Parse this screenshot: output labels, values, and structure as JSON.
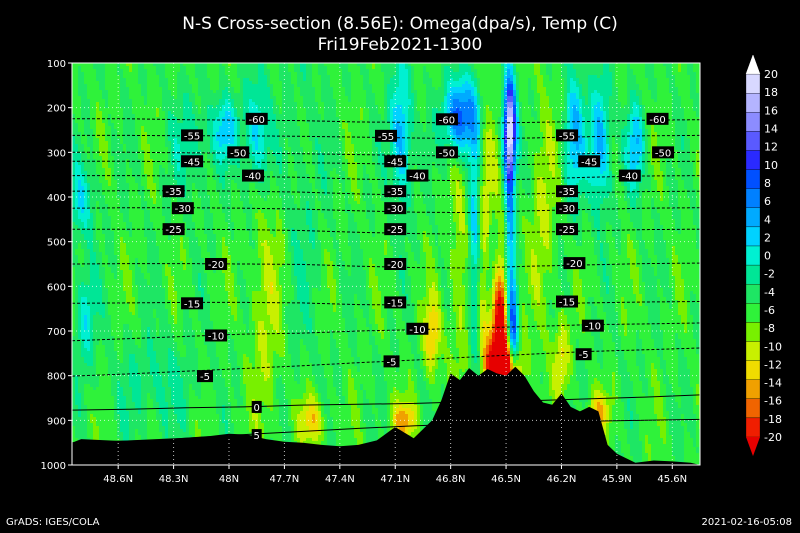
{
  "header": {
    "title": "N-S Cross-section (8.56E): Omega(dpa/s), Temp (C)",
    "subtitle": "Fri19Feb2021-1300"
  },
  "footer": {
    "left": "GrADS: IGES/COLA",
    "right": "2021-02-16-05:08"
  },
  "colors": {
    "background": "#000000",
    "terrain": "#000000",
    "neutral": "#2ff23a",
    "contour": "#000000"
  },
  "chart_data": {
    "type": "heatmap",
    "title": "N-S Cross-section (8.56E): Omega(dpa/s), Temp (C)",
    "subtitle": "Fri19Feb2021-1300",
    "x_axis": {
      "range": [
        48.85,
        45.45
      ],
      "ticks": [
        48.6,
        48.3,
        48.0,
        47.7,
        47.4,
        47.1,
        46.8,
        46.5,
        46.2,
        45.9,
        45.6
      ],
      "tick_labels": [
        "48.6N",
        "48.3N",
        "48N",
        "47.7N",
        "47.4N",
        "47.1N",
        "46.8N",
        "46.5N",
        "46.2N",
        "45.9N",
        "45.6N"
      ]
    },
    "y_axis": {
      "range": [
        100,
        1000
      ],
      "ticks": [
        100,
        200,
        300,
        400,
        500,
        600,
        700,
        800,
        900,
        1000
      ],
      "tick_labels": [
        "100",
        "200",
        "300",
        "400",
        "500",
        "600",
        "700",
        "800",
        "900",
        "1000"
      ]
    },
    "grid": true,
    "colorbar": {
      "placement": "right",
      "levels": [
        20,
        18,
        16,
        14,
        12,
        10,
        8,
        6,
        4,
        2,
        0,
        -2,
        -4,
        -6,
        -8,
        -10,
        -12,
        -14,
        -16,
        -18,
        -20
      ],
      "labels": [
        "20",
        "18",
        "16",
        "14",
        "12",
        "10",
        "8",
        "6",
        "4",
        "2",
        "0",
        "-2",
        "-4",
        "-6",
        "-8",
        "-10",
        "-12",
        "-14",
        "-16",
        "-18",
        "-20"
      ],
      "colors": [
        "#ffffff",
        "#d8d8ff",
        "#b4b4ff",
        "#8c8cff",
        "#5a5aff",
        "#2a2aff",
        "#0050ff",
        "#0080ff",
        "#00aaff",
        "#00d2ff",
        "#00f0d2",
        "#00e696",
        "#1ee664",
        "#2ff23a",
        "#78f000",
        "#c8f000",
        "#f0dc00",
        "#f0a000",
        "#f06400",
        "#f01e00",
        "#e60000"
      ]
    },
    "temperature_contours": [
      {
        "value": -60,
        "label": "-60",
        "p": [
          225,
          225,
          227,
          228,
          229,
          232,
          233,
          235,
          233,
          231,
          228,
          227
        ],
        "label_positions": [
          [
            47.85,
            225
          ],
          [
            46.82,
            226
          ],
          [
            45.68,
            225
          ]
        ]
      },
      {
        "value": -55,
        "label": "-55",
        "p": [
          262,
          262,
          263,
          263,
          264,
          266,
          268,
          270,
          268,
          265,
          263,
          262
        ],
        "label_positions": [
          [
            48.2,
            262
          ],
          [
            47.15,
            263
          ],
          [
            46.17,
            262
          ]
        ]
      },
      {
        "value": -50,
        "label": "-50",
        "p": [
          300,
          300,
          301,
          302,
          303,
          305,
          307,
          309,
          307,
          303,
          301,
          300
        ],
        "label_positions": [
          [
            47.95,
            300
          ],
          [
            46.82,
            300
          ],
          [
            45.65,
            300
          ]
        ]
      },
      {
        "value": -45,
        "label": "-45",
        "p": [
          320,
          320,
          321,
          322,
          323,
          325,
          327,
          329,
          327,
          323,
          321,
          320
        ],
        "label_positions": [
          [
            48.2,
            320
          ],
          [
            47.1,
            320
          ],
          [
            46.05,
            320
          ]
        ]
      },
      {
        "value": -40,
        "label": "-40",
        "p": [
          352,
          352,
          353,
          354,
          356,
          360,
          362,
          364,
          360,
          356,
          353,
          352
        ],
        "label_positions": [
          [
            47.87,
            352
          ],
          [
            46.98,
            352
          ],
          [
            45.83,
            352
          ]
        ]
      },
      {
        "value": -35,
        "label": "-35",
        "p": [
          387,
          386,
          386,
          387,
          389,
          393,
          396,
          397,
          393,
          390,
          388,
          387
        ],
        "label_positions": [
          [
            48.3,
            387
          ],
          [
            47.1,
            387
          ],
          [
            46.17,
            387
          ]
        ]
      },
      {
        "value": -30,
        "label": "-30",
        "p": [
          425,
          424,
          424,
          425,
          427,
          431,
          434,
          435,
          431,
          428,
          425,
          424
        ],
        "label_positions": [
          [
            48.25,
            425
          ],
          [
            47.1,
            425
          ],
          [
            46.17,
            425
          ]
        ]
      },
      {
        "value": -25,
        "label": "-25",
        "p": [
          472,
          472,
          472,
          473,
          475,
          479,
          482,
          483,
          479,
          476,
          473,
          472
        ],
        "label_positions": [
          [
            48.3,
            472
          ],
          [
            47.1,
            472
          ],
          [
            46.17,
            472
          ]
        ]
      },
      {
        "value": -20,
        "label": "-20",
        "p": [
          550,
          549,
          549,
          550,
          551,
          555,
          558,
          559,
          555,
          552,
          549,
          548
        ],
        "label_positions": [
          [
            48.07,
            550
          ],
          [
            47.1,
            550
          ],
          [
            46.13,
            548
          ]
        ]
      },
      {
        "value": -15,
        "label": "-15",
        "p": [
          638,
          637,
          636,
          636,
          637,
          641,
          642,
          643,
          640,
          637,
          635,
          634
        ],
        "label_positions": [
          [
            48.2,
            638
          ],
          [
            47.1,
            636
          ],
          [
            46.17,
            634
          ]
        ]
      },
      {
        "value": -10,
        "label": "-10",
        "p": [
          722,
          717,
          712,
          707,
          705,
          700,
          697,
          693,
          690,
          686,
          684,
          682
        ],
        "label_positions": [
          [
            48.07,
            710
          ],
          [
            46.98,
            695
          ],
          [
            46.03,
            688
          ]
        ]
      },
      {
        "value": -5,
        "label": "-5",
        "p": [
          801,
          796,
          790,
          784,
          778,
          771,
          765,
          758,
          752,
          746,
          742,
          738
        ],
        "label_positions": [
          [
            48.13,
            801
          ],
          [
            47.12,
            768
          ],
          [
            46.08,
            752
          ]
        ]
      },
      {
        "value": 0,
        "label": "0",
        "p": [
          877,
          875,
          872,
          870,
          866,
          864,
          862,
          858,
          856,
          852,
          848,
          843
        ],
        "label_positions": [
          [
            47.85,
            870
          ]
        ]
      },
      {
        "value": 5,
        "label": "5",
        "p": [
          950,
          946,
          940,
          932,
          925,
          918,
          912,
          908,
          905,
          902,
          900,
          898
        ],
        "label_positions": [
          [
            47.85,
            933
          ]
        ]
      }
    ],
    "contour_lat_grid": [
      48.85,
      48.54,
      48.23,
      47.92,
      47.61,
      47.3,
      46.99,
      46.68,
      46.37,
      46.06,
      45.75,
      45.45
    ],
    "terrain": {
      "lat": [
        48.85,
        48.8,
        48.7,
        48.6,
        48.5,
        48.4,
        48.3,
        48.2,
        48.1,
        48.0,
        47.9,
        47.8,
        47.7,
        47.6,
        47.5,
        47.4,
        47.3,
        47.2,
        47.1,
        47.0,
        46.9,
        46.85,
        46.8,
        46.75,
        46.7,
        46.65,
        46.6,
        46.55,
        46.5,
        46.45,
        46.4,
        46.35,
        46.3,
        46.25,
        46.2,
        46.15,
        46.1,
        46.05,
        46.0,
        45.95,
        45.9,
        45.8,
        45.7,
        45.6,
        45.5,
        45.45
      ],
      "p": [
        950,
        942,
        944,
        946,
        945,
        944,
        941,
        938,
        935,
        930,
        932,
        942,
        948,
        950,
        955,
        958,
        955,
        945,
        915,
        940,
        900,
        855,
        795,
        810,
        783,
        800,
        785,
        795,
        800,
        780,
        800,
        835,
        860,
        865,
        840,
        870,
        880,
        870,
        880,
        955,
        975,
        995,
        990,
        992,
        995,
        1000
      ]
    },
    "omega_features": [
      {
        "lat": 46.55,
        "p": 690,
        "sx": 0.05,
        "sp": 120,
        "v": -22
      },
      {
        "lat": 46.51,
        "p": 790,
        "sx": 0.06,
        "sp": 40,
        "v": -18
      },
      {
        "lat": 46.6,
        "p": 430,
        "sx": 0.04,
        "sp": 150,
        "v": -8
      },
      {
        "lat": 46.46,
        "p": 700,
        "sx": 0.02,
        "sp": 90,
        "v": 14
      },
      {
        "lat": 46.48,
        "p": 250,
        "sx": 0.025,
        "sp": 80,
        "v": 22
      },
      {
        "lat": 46.48,
        "p": 480,
        "sx": 0.02,
        "sp": 200,
        "v": 10
      },
      {
        "lat": 46.75,
        "p": 220,
        "sx": 0.06,
        "sp": 60,
        "v": 15
      },
      {
        "lat": 46.67,
        "p": 500,
        "sx": 0.025,
        "sp": 200,
        "v": 9
      },
      {
        "lat": 46.58,
        "p": 600,
        "sx": 0.03,
        "sp": 120,
        "v": 16
      },
      {
        "lat": 47.07,
        "p": 260,
        "sx": 0.04,
        "sp": 110,
        "v": 10
      },
      {
        "lat": 46.13,
        "p": 260,
        "sx": 0.04,
        "sp": 110,
        "v": 8
      },
      {
        "lat": 45.99,
        "p": 280,
        "sx": 0.04,
        "sp": 100,
        "v": 10
      },
      {
        "lat": 45.8,
        "p": 290,
        "sx": 0.035,
        "sp": 70,
        "v": 8
      },
      {
        "lat": 48.02,
        "p": 250,
        "sx": 0.05,
        "sp": 50,
        "v": 7
      },
      {
        "lat": 47.85,
        "p": 260,
        "sx": 0.05,
        "sp": 90,
        "v": 8
      },
      {
        "lat": 48.2,
        "p": 280,
        "sx": 0.08,
        "sp": 80,
        "v": 4
      },
      {
        "lat": 48.8,
        "p": 410,
        "sx": 0.05,
        "sp": 60,
        "v": 6
      },
      {
        "lat": 48.78,
        "p": 670,
        "sx": 0.04,
        "sp": 80,
        "v": 6
      },
      {
        "lat": 48.4,
        "p": 820,
        "sx": 0.15,
        "sp": 80,
        "v": 3
      },
      {
        "lat": 46.3,
        "p": 440,
        "sx": 0.05,
        "sp": 180,
        "v": -4
      },
      {
        "lat": 46.75,
        "p": 560,
        "sx": 0.04,
        "sp": 200,
        "v": -4
      },
      {
        "lat": 47.6,
        "p": 400,
        "sx": 0.08,
        "sp": 300,
        "v": 2
      },
      {
        "lat": 47.8,
        "p": 650,
        "sx": 0.06,
        "sp": 200,
        "v": -4
      },
      {
        "lat": 47.05,
        "p": 900,
        "sx": 0.05,
        "sp": 30,
        "v": -8
      },
      {
        "lat": 46.9,
        "p": 710,
        "sx": 0.03,
        "sp": 60,
        "v": -8
      },
      {
        "lat": 46.0,
        "p": 880,
        "sx": 0.04,
        "sp": 30,
        "v": -7
      },
      {
        "lat": 47.55,
        "p": 900,
        "sx": 0.05,
        "sp": 40,
        "v": -7
      },
      {
        "lat": 46.2,
        "p": 760,
        "sx": 0.03,
        "sp": 60,
        "v": -6
      }
    ]
  }
}
